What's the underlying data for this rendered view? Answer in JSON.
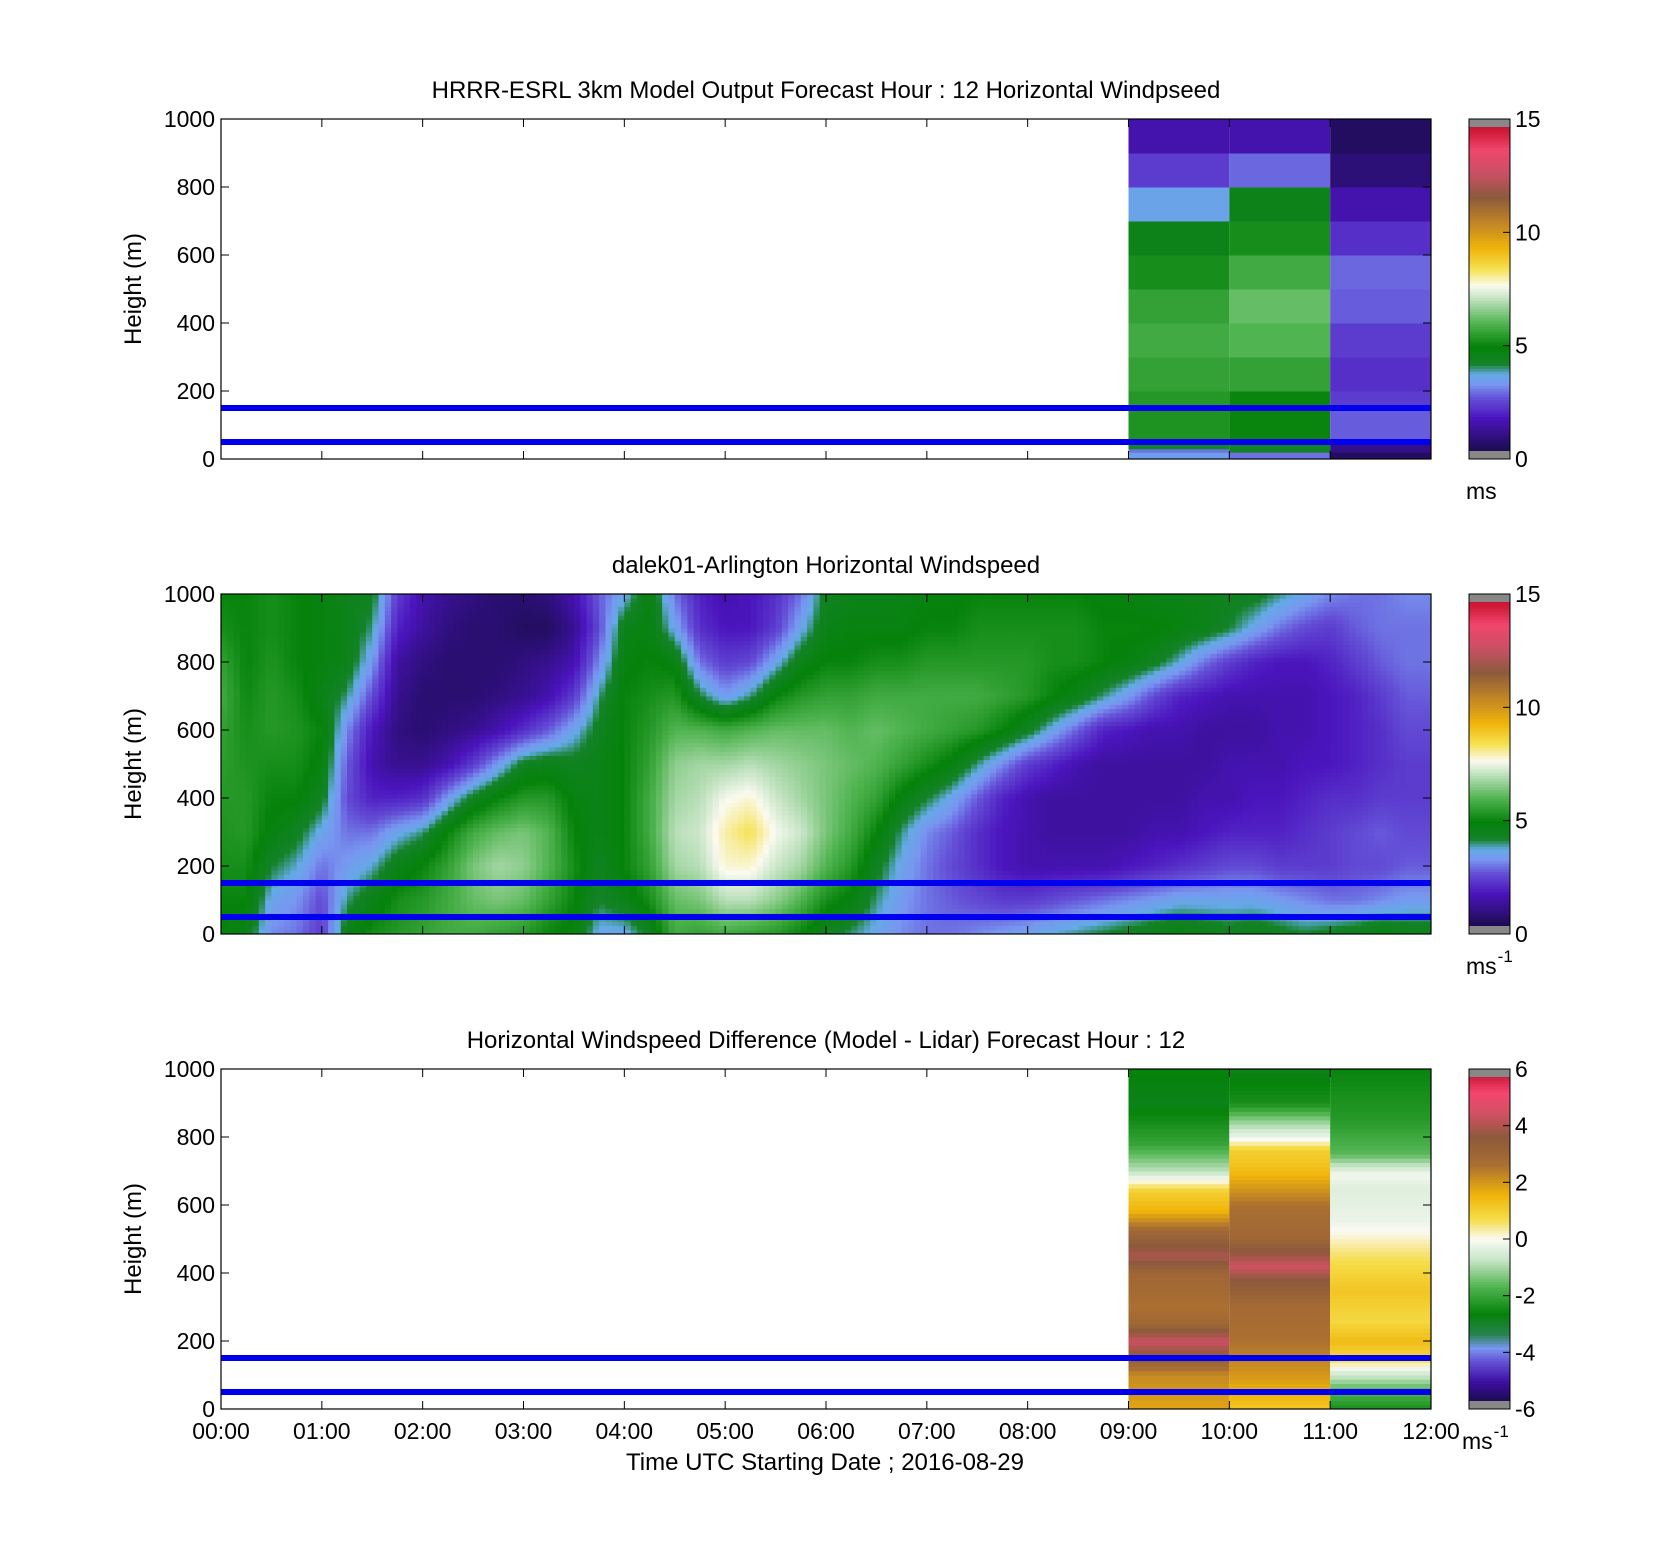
{
  "figure": {
    "xlabel": "Time UTC  Starting Date ; 2016-08-29",
    "x_ticks": [
      "00:00",
      "01:00",
      "02:00",
      "03:00",
      "04:00",
      "05:00",
      "06:00",
      "07:00",
      "08:00",
      "09:00",
      "10:00",
      "11:00",
      "12:00"
    ],
    "x_range_hours": [
      0,
      12
    ],
    "colors": {
      "line": "#0000ee",
      "background": "#ffffff",
      "cap": "#888888"
    }
  },
  "chart_data": [
    {
      "type": "heatmap",
      "title": "HRRR-ESRL 3km Model Output   Forecast Hour : 12 Horizontal Windpseed",
      "ylabel": "Height (m)",
      "ylim": [
        0,
        1000
      ],
      "y_ticks": [
        "0",
        "200",
        "400",
        "600",
        "800",
        "1000"
      ],
      "colorbar": {
        "min": 0,
        "max": 15,
        "ticks": [
          "0",
          "5",
          "10",
          "15"
        ],
        "unit": "ms",
        "unit_sup": ""
      },
      "colormap": "windspeed",
      "reference_lines_m": [
        50,
        150
      ],
      "columns": [
        {
          "t0": 9,
          "t1": 10,
          "cells": [
            {
              "h0": 0,
              "h1": 20,
              "v": 3.5
            },
            {
              "h0": 20,
              "h1": 30,
              "v": 3.0
            },
            {
              "h0": 30,
              "h1": 50,
              "v": 4.2
            },
            {
              "h0": 50,
              "h1": 150,
              "v": 5.3
            },
            {
              "h0": 150,
              "h1": 200,
              "v": 5.4
            },
            {
              "h0": 200,
              "h1": 300,
              "v": 5.6
            },
            {
              "h0": 300,
              "h1": 400,
              "v": 5.8
            },
            {
              "h0": 400,
              "h1": 500,
              "v": 5.6
            },
            {
              "h0": 500,
              "h1": 600,
              "v": 5.2
            },
            {
              "h0": 600,
              "h1": 700,
              "v": 4.6
            },
            {
              "h0": 700,
              "h1": 800,
              "v": 3.6
            },
            {
              "h0": 800,
              "h1": 900,
              "v": 2.4
            },
            {
              "h0": 900,
              "h1": 1000,
              "v": 1.6
            }
          ]
        },
        {
          "t0": 10,
          "t1": 11,
          "cells": [
            {
              "h0": 0,
              "h1": 20,
              "v": 3.0
            },
            {
              "h0": 20,
              "h1": 50,
              "v": 4.3
            },
            {
              "h0": 50,
              "h1": 150,
              "v": 5.0
            },
            {
              "h0": 150,
              "h1": 200,
              "v": 5.0
            },
            {
              "h0": 200,
              "h1": 300,
              "v": 5.6
            },
            {
              "h0": 300,
              "h1": 400,
              "v": 6.0
            },
            {
              "h0": 400,
              "h1": 500,
              "v": 6.2
            },
            {
              "h0": 500,
              "h1": 600,
              "v": 5.8
            },
            {
              "h0": 600,
              "h1": 700,
              "v": 5.2
            },
            {
              "h0": 700,
              "h1": 800,
              "v": 4.6
            },
            {
              "h0": 800,
              "h1": 900,
              "v": 2.9
            },
            {
              "h0": 900,
              "h1": 1000,
              "v": 1.6
            }
          ]
        },
        {
          "t0": 11,
          "t1": 12,
          "cells": [
            {
              "h0": 0,
              "h1": 20,
              "v": 0.6
            },
            {
              "h0": 20,
              "h1": 50,
              "v": 1.1
            },
            {
              "h0": 50,
              "h1": 150,
              "v": 2.8
            },
            {
              "h0": 150,
              "h1": 200,
              "v": 2.4
            },
            {
              "h0": 200,
              "h1": 300,
              "v": 2.2
            },
            {
              "h0": 300,
              "h1": 400,
              "v": 2.4
            },
            {
              "h0": 400,
              "h1": 500,
              "v": 2.8
            },
            {
              "h0": 500,
              "h1": 600,
              "v": 2.9
            },
            {
              "h0": 600,
              "h1": 700,
              "v": 2.2
            },
            {
              "h0": 700,
              "h1": 800,
              "v": 1.6
            },
            {
              "h0": 800,
              "h1": 900,
              "v": 0.9
            },
            {
              "h0": 900,
              "h1": 1000,
              "v": 0.6
            }
          ]
        }
      ]
    },
    {
      "type": "heatmap",
      "title": "dalek01-Arlington  Horizontal Windspeed",
      "ylabel": "Height (m)",
      "ylim": [
        0,
        1000
      ],
      "y_ticks": [
        "0",
        "200",
        "400",
        "600",
        "800",
        "1000"
      ],
      "colorbar": {
        "min": 0,
        "max": 15,
        "ticks": [
          "0",
          "5",
          "10",
          "15"
        ],
        "unit": "ms",
        "unit_sup": "-1"
      },
      "colormap": "windspeed",
      "reference_lines_m": [
        50,
        150
      ],
      "time_hours": [
        0.0,
        0.25,
        0.5,
        0.75,
        1.0,
        1.25,
        1.5,
        1.75,
        2.0,
        2.25,
        2.5,
        2.75,
        3.0,
        3.25,
        3.5,
        3.75,
        4.0,
        4.25,
        4.5,
        4.75,
        5.0,
        5.25,
        5.5,
        5.75,
        6.0,
        6.25,
        6.5,
        6.75,
        7.0,
        7.25,
        7.5,
        7.75,
        8.0,
        8.25,
        8.5,
        8.75,
        9.0,
        9.25,
        9.5,
        9.75,
        10.0,
        10.25,
        10.5,
        10.75,
        11.0,
        11.25,
        11.5,
        11.75
      ],
      "heights_m": [
        0,
        100,
        200,
        300,
        400,
        500,
        600,
        700,
        800,
        900,
        1000
      ],
      "windspeed_grid": [
        [
          4.8,
          5.0,
          5.2,
          5.3,
          5.4,
          5.5,
          5.6,
          5.8,
          5.6,
          5.2,
          5.0
        ],
        [
          4.6,
          5.0,
          5.2,
          5.4,
          5.4,
          5.3,
          5.2,
          5.1,
          5.0,
          5.0,
          5.0
        ],
        [
          3.2,
          3.6,
          4.2,
          4.8,
          5.0,
          5.2,
          5.4,
          5.4,
          5.3,
          5.2,
          5.2
        ],
        [
          3.0,
          3.3,
          3.8,
          4.4,
          5.0,
          5.2,
          5.3,
          5.2,
          5.0,
          5.0,
          5.0
        ],
        [
          2.4,
          2.6,
          3.0,
          3.6,
          4.4,
          4.8,
          5.0,
          4.6,
          4.8,
          4.8,
          4.8
        ],
        [
          4.6,
          4.0,
          3.4,
          3.0,
          2.6,
          2.8,
          3.2,
          4.0,
          4.6,
          4.6,
          4.5
        ],
        [
          5.2,
          4.6,
          3.8,
          3.0,
          2.0,
          1.6,
          1.8,
          2.6,
          3.4,
          4.0,
          4.4
        ],
        [
          5.4,
          5.2,
          4.6,
          3.6,
          2.0,
          1.2,
          1.0,
          1.2,
          1.4,
          2.0,
          2.4
        ],
        [
          5.6,
          5.4,
          5.0,
          4.0,
          2.2,
          1.2,
          0.8,
          0.8,
          1.0,
          1.4,
          1.6
        ],
        [
          5.8,
          5.8,
          5.6,
          5.0,
          3.4,
          1.6,
          1.0,
          0.8,
          0.8,
          1.0,
          1.2
        ],
        [
          5.8,
          6.2,
          6.4,
          5.8,
          4.4,
          2.4,
          1.2,
          0.8,
          0.8,
          0.8,
          1.0
        ],
        [
          5.6,
          6.4,
          6.8,
          6.2,
          5.0,
          3.4,
          1.6,
          1.0,
          0.8,
          0.8,
          0.8
        ],
        [
          5.4,
          6.2,
          6.6,
          6.4,
          5.4,
          4.4,
          2.2,
          1.2,
          1.0,
          0.6,
          0.8
        ],
        [
          5.0,
          5.6,
          6.0,
          6.0,
          5.4,
          4.6,
          2.8,
          1.6,
          1.2,
          0.6,
          1.0
        ],
        [
          4.8,
          5.0,
          5.2,
          5.0,
          4.8,
          4.4,
          3.6,
          2.4,
          1.6,
          1.2,
          1.6
        ],
        [
          3.6,
          4.2,
          4.4,
          4.6,
          4.6,
          4.6,
          4.4,
          4.0,
          3.2,
          2.6,
          2.8
        ],
        [
          3.6,
          4.6,
          5.0,
          5.0,
          5.0,
          5.0,
          5.0,
          5.0,
          4.8,
          4.6,
          3.6
        ],
        [
          4.4,
          5.2,
          5.6,
          5.8,
          5.8,
          5.6,
          5.4,
          5.2,
          5.0,
          4.8,
          4.8
        ],
        [
          5.8,
          6.2,
          6.8,
          7.0,
          6.8,
          6.6,
          6.0,
          5.4,
          4.8,
          3.6,
          3.0
        ],
        [
          5.6,
          6.4,
          7.0,
          7.2,
          7.0,
          6.8,
          6.0,
          4.2,
          3.0,
          2.2,
          2.0
        ],
        [
          5.8,
          7.0,
          7.8,
          8.0,
          7.6,
          6.8,
          5.8,
          3.4,
          2.4,
          1.8,
          1.6
        ],
        [
          5.6,
          7.0,
          7.8,
          8.4,
          7.8,
          7.0,
          6.0,
          4.0,
          2.6,
          1.8,
          1.8
        ],
        [
          5.4,
          6.6,
          7.2,
          7.6,
          7.2,
          6.8,
          6.2,
          5.0,
          3.6,
          2.4,
          2.2
        ],
        [
          5.0,
          6.0,
          6.8,
          7.2,
          6.8,
          6.6,
          6.2,
          5.4,
          4.6,
          3.6,
          3.0
        ],
        [
          4.4,
          5.2,
          6.0,
          6.4,
          6.4,
          6.4,
          6.2,
          5.6,
          5.0,
          4.6,
          4.4
        ],
        [
          4.0,
          4.8,
          5.4,
          5.8,
          6.0,
          6.2,
          6.0,
          5.6,
          5.0,
          4.8,
          4.6
        ],
        [
          3.6,
          4.0,
          4.4,
          5.0,
          5.6,
          6.0,
          6.2,
          5.8,
          5.2,
          4.8,
          4.6
        ],
        [
          3.2,
          3.4,
          3.6,
          4.0,
          4.8,
          5.6,
          6.0,
          5.8,
          5.2,
          4.8,
          4.6
        ],
        [
          3.0,
          3.0,
          3.0,
          3.2,
          4.2,
          5.2,
          5.8,
          5.8,
          5.4,
          5.0,
          4.8
        ],
        [
          3.0,
          2.8,
          2.6,
          2.8,
          3.6,
          4.8,
          5.6,
          5.8,
          5.4,
          5.0,
          4.8
        ],
        [
          3.2,
          2.6,
          2.2,
          2.2,
          2.8,
          4.0,
          5.4,
          5.8,
          5.4,
          5.2,
          5.0
        ],
        [
          3.4,
          2.4,
          1.8,
          1.8,
          2.0,
          3.2,
          5.0,
          5.6,
          5.4,
          5.2,
          5.0
        ],
        [
          3.6,
          2.4,
          1.6,
          1.6,
          1.6,
          2.4,
          4.4,
          5.4,
          5.4,
          5.2,
          5.0
        ],
        [
          3.8,
          2.6,
          1.6,
          1.4,
          1.4,
          2.0,
          3.6,
          5.0,
          5.2,
          5.2,
          5.0
        ],
        [
          4.0,
          2.8,
          1.6,
          1.4,
          1.4,
          1.6,
          2.8,
          4.6,
          5.2,
          5.2,
          5.0
        ],
        [
          4.2,
          3.0,
          1.6,
          1.4,
          1.4,
          1.4,
          2.0,
          4.0,
          5.0,
          5.0,
          4.8
        ],
        [
          4.4,
          3.2,
          1.8,
          1.4,
          1.4,
          1.4,
          1.8,
          3.4,
          4.8,
          5.0,
          4.8
        ],
        [
          4.6,
          3.4,
          2.0,
          1.6,
          1.4,
          1.4,
          1.6,
          2.6,
          4.4,
          5.0,
          4.6
        ],
        [
          4.8,
          3.6,
          2.2,
          1.6,
          1.4,
          1.4,
          1.6,
          2.0,
          3.8,
          4.8,
          4.6
        ],
        [
          4.6,
          3.6,
          2.4,
          1.8,
          1.6,
          1.4,
          1.4,
          1.8,
          3.0,
          4.6,
          4.6
        ],
        [
          4.4,
          3.6,
          2.6,
          2.0,
          1.6,
          1.6,
          1.4,
          1.6,
          2.4,
          4.2,
          4.4
        ],
        [
          4.6,
          3.6,
          2.6,
          2.0,
          1.8,
          1.6,
          1.4,
          1.6,
          2.0,
          3.6,
          4.4
        ],
        [
          4.4,
          3.4,
          2.4,
          2.0,
          1.8,
          1.6,
          1.6,
          1.6,
          1.8,
          3.0,
          4.0
        ],
        [
          4.2,
          3.2,
          2.4,
          2.2,
          2.0,
          1.8,
          1.6,
          1.6,
          1.8,
          2.6,
          3.6
        ],
        [
          4.4,
          3.0,
          2.4,
          2.4,
          2.2,
          1.8,
          1.8,
          1.8,
          2.0,
          2.4,
          3.2
        ],
        [
          4.6,
          3.0,
          2.6,
          2.6,
          2.2,
          2.0,
          2.0,
          2.0,
          2.4,
          2.8,
          3.0
        ],
        [
          4.8,
          3.2,
          2.6,
          2.8,
          2.4,
          2.2,
          2.2,
          2.4,
          2.8,
          3.0,
          3.0
        ],
        [
          4.6,
          3.4,
          2.8,
          2.6,
          2.4,
          2.4,
          2.6,
          2.8,
          3.0,
          3.0,
          3.2
        ]
      ]
    },
    {
      "type": "heatmap",
      "title": "Horizontal Windspeed Difference (Model - Lidar) Forecast Hour : 12",
      "ylabel": "Height (m)",
      "ylim": [
        0,
        1000
      ],
      "y_ticks": [
        "0",
        "200",
        "400",
        "600",
        "800",
        "1000"
      ],
      "colorbar": {
        "min": -6,
        "max": 6,
        "ticks": [
          "-6",
          "-4",
          "-2",
          "0",
          "2",
          "4",
          "6"
        ],
        "unit": "ms",
        "unit_sup": "-1"
      },
      "colormap": "difference",
      "reference_lines_m": [
        50,
        150
      ],
      "columns": [
        {
          "t0": 9,
          "t1": 10,
          "profile": [
            {
              "h": 0,
              "v": 1.8
            },
            {
              "h": 100,
              "v": 2.2
            },
            {
              "h": 150,
              "v": 3.4
            },
            {
              "h": 200,
              "v": 4.4
            },
            {
              "h": 250,
              "v": 3.0
            },
            {
              "h": 300,
              "v": 2.6
            },
            {
              "h": 400,
              "v": 3.0
            },
            {
              "h": 450,
              "v": 4.0
            },
            {
              "h": 520,
              "v": 3.0
            },
            {
              "h": 580,
              "v": 1.6
            },
            {
              "h": 640,
              "v": 1.0
            },
            {
              "h": 700,
              "v": -0.8
            },
            {
              "h": 780,
              "v": -2.0
            },
            {
              "h": 900,
              "v": -2.8
            },
            {
              "h": 1000,
              "v": -2.6
            }
          ]
        },
        {
          "t0": 10,
          "t1": 11,
          "profile": [
            {
              "h": 0,
              "v": 1.2
            },
            {
              "h": 100,
              "v": 2.0
            },
            {
              "h": 200,
              "v": 2.6
            },
            {
              "h": 300,
              "v": 2.8
            },
            {
              "h": 380,
              "v": 3.6
            },
            {
              "h": 420,
              "v": 4.4
            },
            {
              "h": 500,
              "v": 3.0
            },
            {
              "h": 600,
              "v": 2.6
            },
            {
              "h": 700,
              "v": 1.4
            },
            {
              "h": 760,
              "v": 1.0
            },
            {
              "h": 800,
              "v": -0.2
            },
            {
              "h": 840,
              "v": -1.0
            },
            {
              "h": 900,
              "v": -2.4
            },
            {
              "h": 1000,
              "v": -2.8
            }
          ]
        },
        {
          "t0": 11,
          "t1": 12,
          "profile": [
            {
              "h": 0,
              "v": -2.4
            },
            {
              "h": 60,
              "v": -1.6
            },
            {
              "h": 110,
              "v": -0.4
            },
            {
              "h": 150,
              "v": 0.8
            },
            {
              "h": 200,
              "v": 1.4
            },
            {
              "h": 260,
              "v": 0.8
            },
            {
              "h": 350,
              "v": 1.2
            },
            {
              "h": 450,
              "v": 0.6
            },
            {
              "h": 550,
              "v": -0.2
            },
            {
              "h": 650,
              "v": -0.4
            },
            {
              "h": 690,
              "v": -0.1
            },
            {
              "h": 750,
              "v": -1.6
            },
            {
              "h": 850,
              "v": -2.2
            },
            {
              "h": 1000,
              "v": -2.6
            }
          ]
        }
      ]
    }
  ]
}
